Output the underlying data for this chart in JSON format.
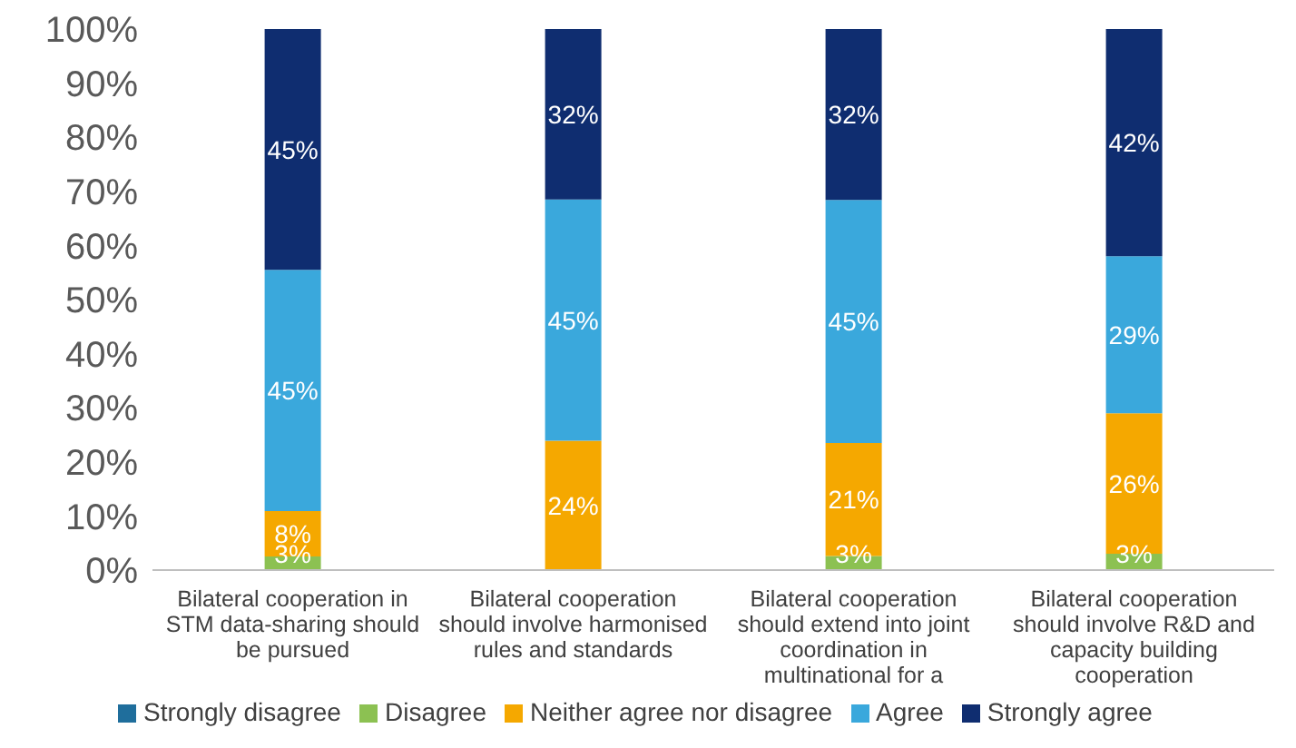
{
  "chart_data": {
    "type": "bar",
    "stacked": true,
    "categories": [
      "Bilateral cooperation in STM data-sharing should be pursued",
      "Bilateral cooperation should involve harmonised rules and standards",
      "Bilateral cooperation should extend into joint coordination in multinational for a",
      "Bilateral cooperation should involve R&D and capacity building cooperation"
    ],
    "series": [
      {
        "name": "Strongly disagree",
        "color": "#1f6e9c",
        "values": [
          0,
          0,
          0,
          0
        ],
        "value_labels": [
          null,
          null,
          null,
          null
        ]
      },
      {
        "name": "Disagree",
        "color": "#8cc152",
        "values": [
          2.5,
          0,
          2.6,
          3
        ],
        "value_labels": [
          "3%",
          null,
          "3%",
          "3%"
        ]
      },
      {
        "name": "Neither agree nor disagree",
        "color": "#f5a800",
        "values": [
          8.4,
          23.9,
          20.9,
          26
        ],
        "value_labels": [
          "8%",
          "24%",
          "21%",
          "26%"
        ]
      },
      {
        "name": "Agree",
        "color": "#3aa8dc",
        "values": [
          44.6,
          44.6,
          44.9,
          29
        ],
        "value_labels": [
          "45%",
          "45%",
          "45%",
          "29%"
        ]
      },
      {
        "name": "Strongly agree",
        "color": "#0f2d70",
        "values": [
          44.5,
          31.5,
          31.6,
          42
        ],
        "value_labels": [
          "45%",
          "32%",
          "32%",
          "42%"
        ]
      }
    ],
    "ylim": [
      0,
      100
    ],
    "yticks": [
      {
        "value": 0,
        "label": "0%"
      },
      {
        "value": 10,
        "label": "10%"
      },
      {
        "value": 20,
        "label": "20%"
      },
      {
        "value": 30,
        "label": "30%"
      },
      {
        "value": 40,
        "label": "40%"
      },
      {
        "value": 50,
        "label": "50%"
      },
      {
        "value": 60,
        "label": "60%"
      },
      {
        "value": 70,
        "label": "70%"
      },
      {
        "value": 80,
        "label": "80%"
      },
      {
        "value": 90,
        "label": "90%"
      },
      {
        "value": 100,
        "label": "100%"
      }
    ],
    "grid": false,
    "legend": "bottom"
  }
}
